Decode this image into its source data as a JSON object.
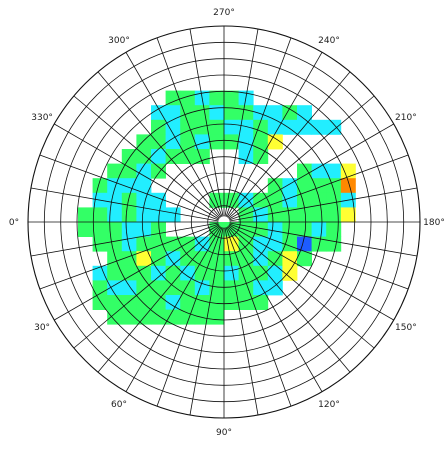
{
  "chart_data": {
    "type": "heatmap",
    "projection": "polar",
    "angle_labels": [
      {
        "deg": 270,
        "label": "270°"
      },
      {
        "deg": 240,
        "label": "240°"
      },
      {
        "deg": 210,
        "label": "210°"
      },
      {
        "deg": 180,
        "label": "180°"
      },
      {
        "deg": 150,
        "label": "150°"
      },
      {
        "deg": 120,
        "label": "120°"
      },
      {
        "deg": 90,
        "label": "90°"
      },
      {
        "deg": 60,
        "label": "60°"
      },
      {
        "deg": 30,
        "label": "30°"
      },
      {
        "deg": 0,
        "label": "0°"
      },
      {
        "deg": 330,
        "label": "330°"
      },
      {
        "deg": 300,
        "label": "300°"
      }
    ],
    "angle_convention": "0° left, increasing counter-clockwise (90° at bottom, 180° right, 270° top)",
    "grid": true,
    "radial_rings": 12,
    "angular_spokes_deg": 10,
    "color_scale": [
      "#1e5cff",
      "#00ccff",
      "#33ffaa",
      "#33ff66",
      "#88ff33",
      "#ffff33",
      "#ff8800"
    ],
    "grid_cell_columns": 18,
    "grid_cell_rows": 15,
    "cells": [
      [
        -4,
        -9,
        "g"
      ],
      [
        -3,
        -9,
        "g"
      ],
      [
        -2,
        -9,
        "c"
      ],
      [
        -1,
        -9,
        "g"
      ],
      [
        0,
        -9,
        "g"
      ],
      [
        1,
        -9,
        "c"
      ],
      [
        -5,
        -8,
        "c"
      ],
      [
        -4,
        -8,
        "c"
      ],
      [
        -3,
        -8,
        "g"
      ],
      [
        -2,
        -8,
        "g"
      ],
      [
        -1,
        -8,
        "c"
      ],
      [
        0,
        -8,
        "g"
      ],
      [
        1,
        -8,
        "g"
      ],
      [
        2,
        -8,
        "c"
      ],
      [
        3,
        -8,
        "c"
      ],
      [
        4,
        -8,
        "g"
      ],
      [
        5,
        -8,
        "c"
      ],
      [
        -5,
        -7,
        "g"
      ],
      [
        -4,
        -7,
        "c"
      ],
      [
        -3,
        -7,
        "g"
      ],
      [
        -2,
        -7,
        "g"
      ],
      [
        -1,
        -7,
        "g"
      ],
      [
        0,
        -7,
        "c"
      ],
      [
        1,
        -7,
        "c"
      ],
      [
        2,
        -7,
        "g"
      ],
      [
        3,
        -7,
        "c"
      ],
      [
        4,
        -7,
        "c"
      ],
      [
        5,
        -7,
        "c"
      ],
      [
        6,
        -7,
        "c"
      ],
      [
        7,
        -7,
        "c"
      ],
      [
        -6,
        -6,
        "g"
      ],
      [
        -5,
        -6,
        "g"
      ],
      [
        -4,
        -6,
        "c"
      ],
      [
        -3,
        -6,
        "g"
      ],
      [
        -2,
        -6,
        "c"
      ],
      [
        -1,
        -6,
        "g"
      ],
      [
        0,
        -6,
        "g"
      ],
      [
        1,
        -6,
        "c"
      ],
      [
        2,
        -6,
        "g"
      ],
      [
        3,
        -6,
        "y"
      ],
      [
        -7,
        -5,
        "g"
      ],
      [
        -6,
        -5,
        "g"
      ],
      [
        -5,
        -5,
        "c"
      ],
      [
        -4,
        -5,
        "g"
      ],
      [
        -3,
        -5,
        "g"
      ],
      [
        -2,
        -5,
        "g"
      ],
      [
        1,
        -5,
        "c"
      ],
      [
        2,
        -5,
        "g"
      ],
      [
        -8,
        -4,
        "g"
      ],
      [
        -7,
        -4,
        "g"
      ],
      [
        -6,
        -4,
        "c"
      ],
      [
        -5,
        -4,
        "g"
      ],
      [
        5,
        -4,
        "g"
      ],
      [
        6,
        -4,
        "c"
      ],
      [
        7,
        -4,
        "c"
      ],
      [
        8,
        -4,
        "y"
      ],
      [
        -9,
        -3,
        "g"
      ],
      [
        -8,
        -3,
        "c"
      ],
      [
        -7,
        -3,
        "c"
      ],
      [
        -6,
        -3,
        "c"
      ],
      [
        3,
        -3,
        "g"
      ],
      [
        4,
        -3,
        "c"
      ],
      [
        5,
        -3,
        "g"
      ],
      [
        6,
        -3,
        "g"
      ],
      [
        7,
        -3,
        "g"
      ],
      [
        8,
        -3,
        "o"
      ],
      [
        -9,
        -2,
        "c"
      ],
      [
        -8,
        -2,
        "c"
      ],
      [
        -7,
        -2,
        "g"
      ],
      [
        -6,
        -2,
        "c"
      ],
      [
        -5,
        -2,
        "c"
      ],
      [
        -1,
        -2,
        "g"
      ],
      [
        0,
        -2,
        "g"
      ],
      [
        1,
        -2,
        "c"
      ],
      [
        2,
        -2,
        "g"
      ],
      [
        3,
        -2,
        "g"
      ],
      [
        4,
        -2,
        "c"
      ],
      [
        5,
        -2,
        "g"
      ],
      [
        6,
        -2,
        "g"
      ],
      [
        7,
        -2,
        "g"
      ],
      [
        8,
        -2,
        "c"
      ],
      [
        -10,
        -1,
        "g"
      ],
      [
        -9,
        -1,
        "g"
      ],
      [
        -8,
        -1,
        "c"
      ],
      [
        -7,
        -1,
        "g"
      ],
      [
        -6,
        -1,
        "c"
      ],
      [
        -5,
        -1,
        "c"
      ],
      [
        -4,
        -1,
        "c"
      ],
      [
        1,
        -1,
        "g"
      ],
      [
        2,
        -1,
        "c"
      ],
      [
        3,
        -1,
        "g"
      ],
      [
        4,
        -1,
        "g"
      ],
      [
        5,
        -1,
        "g"
      ],
      [
        6,
        -1,
        "g"
      ],
      [
        7,
        -1,
        "g"
      ],
      [
        8,
        -1,
        "y"
      ],
      [
        -10,
        0,
        "g"
      ],
      [
        -9,
        0,
        "g"
      ],
      [
        -8,
        0,
        "g"
      ],
      [
        -7,
        0,
        "c"
      ],
      [
        -6,
        0,
        "c"
      ],
      [
        -5,
        0,
        "g"
      ],
      [
        -1,
        0,
        "g"
      ],
      [
        0,
        0,
        "g"
      ],
      [
        1,
        0,
        "g"
      ],
      [
        2,
        0,
        "g"
      ],
      [
        3,
        0,
        "c"
      ],
      [
        4,
        0,
        "g"
      ],
      [
        5,
        0,
        "g"
      ],
      [
        6,
        0,
        "c"
      ],
      [
        7,
        0,
        "g"
      ],
      [
        -9,
        1,
        "g"
      ],
      [
        -8,
        1,
        "g"
      ],
      [
        -7,
        1,
        "c"
      ],
      [
        -6,
        1,
        "g"
      ],
      [
        -5,
        1,
        "g"
      ],
      [
        -4,
        1,
        "g"
      ],
      [
        -3,
        1,
        "g"
      ],
      [
        -2,
        1,
        "c"
      ],
      [
        -1,
        1,
        "g"
      ],
      [
        0,
        1,
        "y"
      ],
      [
        1,
        1,
        "g"
      ],
      [
        2,
        1,
        "c"
      ],
      [
        3,
        1,
        "c"
      ],
      [
        4,
        1,
        "g"
      ],
      [
        5,
        1,
        "b"
      ],
      [
        6,
        1,
        "g"
      ],
      [
        7,
        1,
        "g"
      ],
      [
        -8,
        2,
        "g"
      ],
      [
        -7,
        2,
        "g"
      ],
      [
        -6,
        2,
        "y"
      ],
      [
        -5,
        2,
        "g"
      ],
      [
        -4,
        2,
        "c"
      ],
      [
        -3,
        2,
        "g"
      ],
      [
        -2,
        2,
        "g"
      ],
      [
        -1,
        2,
        "g"
      ],
      [
        0,
        2,
        "g"
      ],
      [
        1,
        2,
        "g"
      ],
      [
        2,
        2,
        "c"
      ],
      [
        3,
        2,
        "g"
      ],
      [
        4,
        2,
        "y"
      ],
      [
        5,
        2,
        "g"
      ],
      [
        -9,
        3,
        "c"
      ],
      [
        -8,
        3,
        "g"
      ],
      [
        -7,
        3,
        "g"
      ],
      [
        -6,
        3,
        "g"
      ],
      [
        -5,
        3,
        "c"
      ],
      [
        -4,
        3,
        "g"
      ],
      [
        -3,
        3,
        "c"
      ],
      [
        -2,
        3,
        "g"
      ],
      [
        -1,
        3,
        "g"
      ],
      [
        0,
        3,
        "c"
      ],
      [
        1,
        3,
        "g"
      ],
      [
        2,
        3,
        "g"
      ],
      [
        3,
        3,
        "c"
      ],
      [
        4,
        3,
        "y"
      ],
      [
        -9,
        4,
        "g"
      ],
      [
        -8,
        4,
        "c"
      ],
      [
        -7,
        4,
        "c"
      ],
      [
        -6,
        4,
        "g"
      ],
      [
        -5,
        4,
        "g"
      ],
      [
        -4,
        4,
        "g"
      ],
      [
        -3,
        4,
        "g"
      ],
      [
        -2,
        4,
        "c"
      ],
      [
        -1,
        4,
        "g"
      ],
      [
        0,
        4,
        "g"
      ],
      [
        1,
        4,
        "g"
      ],
      [
        2,
        4,
        "c"
      ],
      [
        3,
        4,
        "c"
      ],
      [
        -9,
        5,
        "g"
      ],
      [
        -8,
        5,
        "g"
      ],
      [
        -7,
        5,
        "g"
      ],
      [
        -6,
        5,
        "g"
      ],
      [
        -5,
        5,
        "g"
      ],
      [
        -4,
        5,
        "c"
      ],
      [
        -3,
        5,
        "g"
      ],
      [
        -2,
        5,
        "g"
      ],
      [
        -1,
        5,
        "g"
      ],
      [
        0,
        5,
        "g"
      ],
      [
        1,
        5,
        "g"
      ],
      [
        2,
        5,
        "g"
      ],
      [
        -8,
        6,
        "g"
      ],
      [
        -7,
        6,
        "g"
      ],
      [
        -6,
        6,
        "g"
      ],
      [
        -5,
        6,
        "g"
      ],
      [
        -4,
        6,
        "g"
      ],
      [
        -3,
        6,
        "g"
      ],
      [
        -2,
        6,
        "g"
      ],
      [
        -1,
        6,
        "g"
      ]
    ]
  }
}
